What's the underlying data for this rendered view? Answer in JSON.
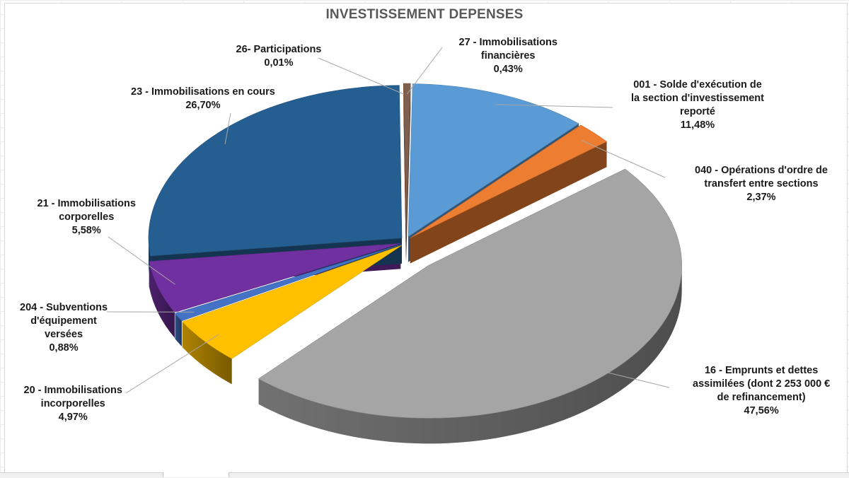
{
  "chart_data": {
    "type": "pie",
    "title": "INVESTISSEMENT DEPENSES",
    "slices": [
      {
        "lines": [
          "001 - Solde d'exécution de",
          "la section d'investissement",
          "reporté"
        ],
        "percent_label": "11,48%",
        "value": 11.48,
        "color": "#5b9bd5"
      },
      {
        "lines": [
          "040 - Opérations d'ordre de",
          "transfert entre sections"
        ],
        "percent_label": "2,37%",
        "value": 2.37,
        "color": "#ed7d31"
      },
      {
        "lines": [
          "16 - Emprunts et dettes",
          "assimilées (dont 2 253 000 €",
          "de refinancement)"
        ],
        "percent_label": "47,56%",
        "value": 47.56,
        "color": "#a5a5a5"
      },
      {
        "lines": [
          "20 - Immobilisations",
          "incorporelles"
        ],
        "percent_label": "4,97%",
        "value": 4.97,
        "color": "#ffc000"
      },
      {
        "lines": [
          "204 - Subventions",
          "d'équipement",
          "versées"
        ],
        "percent_label": "0,88%",
        "value": 0.88,
        "color": "#4472c4"
      },
      {
        "lines": [
          "21 - Immobilisations",
          "corporelles"
        ],
        "percent_label": "5,58%",
        "value": 5.58,
        "color": "#7030a0"
      },
      {
        "lines": [
          "23 - Immobilisations en cours"
        ],
        "percent_label": "26,70%",
        "value": 26.7,
        "color": "#255e91"
      },
      {
        "lines": [
          "26- Participations"
        ],
        "percent_label": "0,01%",
        "value": 0.01,
        "color": "#9e480e"
      },
      {
        "lines": [
          "27 - Immobilisations",
          "financières"
        ],
        "percent_label": "0,43%",
        "value": 0.43,
        "color": "#7f6050"
      }
    ],
    "legend": "none"
  }
}
